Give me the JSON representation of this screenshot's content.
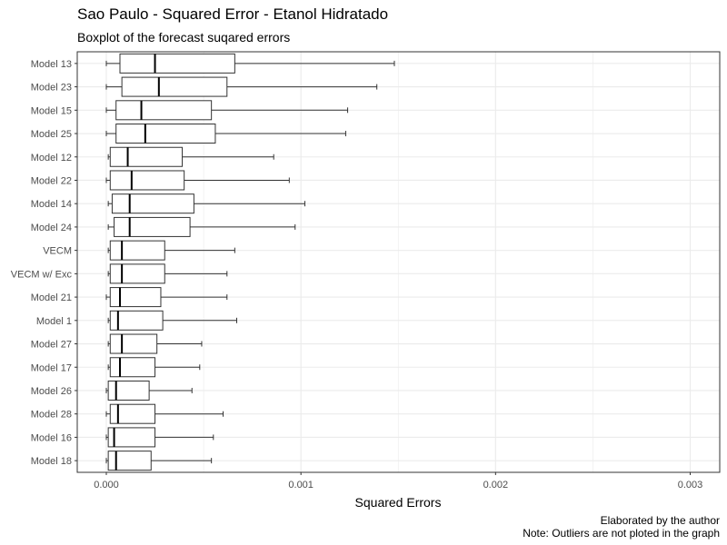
{
  "chart_data": {
    "type": "boxplot",
    "title": "Sao Paulo - Squared Error - Etanol Hidratado",
    "subtitle": "Boxplot of the forecast suqared errors",
    "xlabel": "Squared Errors",
    "ylabel": "",
    "xlim": [
      -0.00015,
      0.0032
    ],
    "x_ticks": [
      0,
      0.001,
      0.002,
      0.003
    ],
    "x_tick_labels": [
      "0.000",
      "0.001",
      "0.002",
      "0.003"
    ],
    "grid": true,
    "orientation": "horizontal",
    "categories": [
      "Model 13",
      "Model 23",
      "Model 15",
      "Model 25",
      "Model 12",
      "Model 22",
      "Model 14",
      "Model 24",
      "VECM",
      "VECM w/ Exc",
      "Model 21",
      "Model 1",
      "Model 27",
      "Model 17",
      "Model 26",
      "Model 28",
      "Model 16",
      "Model 18"
    ],
    "boxes": [
      {
        "min": 0.0,
        "q1": 7e-05,
        "median": 0.00025,
        "q3": 0.00066,
        "max": 0.00148
      },
      {
        "min": 0.0,
        "q1": 8e-05,
        "median": 0.00027,
        "q3": 0.00062,
        "max": 0.00139
      },
      {
        "min": 0.0,
        "q1": 5e-05,
        "median": 0.00018,
        "q3": 0.00054,
        "max": 0.00124
      },
      {
        "min": 0.0,
        "q1": 5e-05,
        "median": 0.0002,
        "q3": 0.00056,
        "max": 0.00123
      },
      {
        "min": 1e-05,
        "q1": 2e-05,
        "median": 0.00011,
        "q3": 0.00039,
        "max": 0.00086
      },
      {
        "min": 0.0,
        "q1": 2e-05,
        "median": 0.00013,
        "q3": 0.0004,
        "max": 0.00094
      },
      {
        "min": 1e-05,
        "q1": 3e-05,
        "median": 0.00012,
        "q3": 0.00045,
        "max": 0.00102
      },
      {
        "min": 1e-05,
        "q1": 4e-05,
        "median": 0.00012,
        "q3": 0.00043,
        "max": 0.00097
      },
      {
        "min": 1e-05,
        "q1": 2e-05,
        "median": 8e-05,
        "q3": 0.0003,
        "max": 0.00066
      },
      {
        "min": 1e-05,
        "q1": 2e-05,
        "median": 8e-05,
        "q3": 0.0003,
        "max": 0.00062
      },
      {
        "min": 0.0,
        "q1": 2e-05,
        "median": 7e-05,
        "q3": 0.00028,
        "max": 0.00062
      },
      {
        "min": 1e-05,
        "q1": 2e-05,
        "median": 6e-05,
        "q3": 0.00029,
        "max": 0.00067
      },
      {
        "min": 1e-05,
        "q1": 2e-05,
        "median": 8e-05,
        "q3": 0.00026,
        "max": 0.00049
      },
      {
        "min": 1e-05,
        "q1": 2e-05,
        "median": 7e-05,
        "q3": 0.00025,
        "max": 0.00048
      },
      {
        "min": 0.0,
        "q1": 1e-05,
        "median": 5e-05,
        "q3": 0.00022,
        "max": 0.00044
      },
      {
        "min": 0.0,
        "q1": 2e-05,
        "median": 6e-05,
        "q3": 0.00025,
        "max": 0.0006
      },
      {
        "min": 0.0,
        "q1": 1e-05,
        "median": 4e-05,
        "q3": 0.00025,
        "max": 0.00055
      },
      {
        "min": 0.0,
        "q1": 1e-05,
        "median": 5e-05,
        "q3": 0.00023,
        "max": 0.00054
      }
    ]
  },
  "caption": {
    "line1": "Elaborated by the author",
    "line2": "Note: Outliers are not ploted in the graph"
  },
  "colors": {
    "box_fill": "#ffffff",
    "box_stroke": "#333333",
    "grid": "#ebebeb",
    "panel_border": "#333333",
    "tick_label": "#4d4d4d"
  }
}
